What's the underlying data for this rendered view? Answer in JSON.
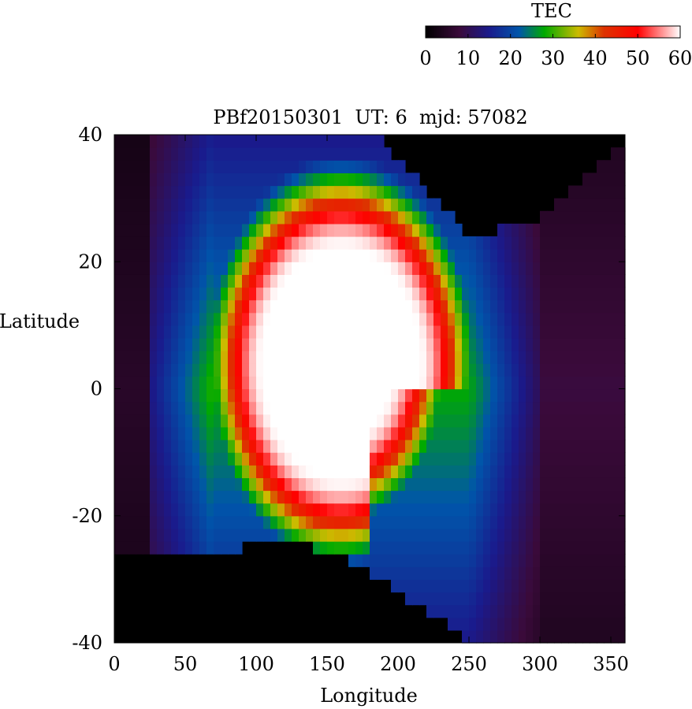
{
  "chart_data": {
    "type": "heatmap",
    "title": "PBf20150301  UT: 6  mjd: 57082",
    "xlabel": "Longitude",
    "ylabel": "Latitude",
    "xlim": [
      0,
      360
    ],
    "ylim": [
      -40,
      40
    ],
    "x_ticks": [
      "0",
      "50",
      "100",
      "150",
      "200",
      "250",
      "300",
      "350"
    ],
    "y_ticks": [
      "40",
      "20",
      "0",
      "-20",
      "-40"
    ],
    "x_tick_values": [
      0,
      50,
      100,
      150,
      200,
      250,
      300,
      350
    ],
    "y_tick_values": [
      40,
      20,
      0,
      -20,
      -40
    ],
    "grid": false,
    "colorbar": {
      "label": "TEC",
      "range": [
        0,
        60
      ],
      "ticks": [
        "0",
        "10",
        "20",
        "30",
        "40",
        "50",
        "60"
      ],
      "tick_values": [
        0,
        10,
        20,
        30,
        40,
        50,
        60
      ],
      "stops": [
        {
          "value": 0,
          "color": "#000000"
        },
        {
          "value": 8,
          "color": "#3a0a3a"
        },
        {
          "value": 15,
          "color": "#1a1a8c"
        },
        {
          "value": 22,
          "color": "#0055aa"
        },
        {
          "value": 28,
          "color": "#00aa00"
        },
        {
          "value": 36,
          "color": "#ccbb00"
        },
        {
          "value": 42,
          "color": "#dd3300"
        },
        {
          "value": 50,
          "color": "#ff0000"
        },
        {
          "value": 60,
          "color": "#ffffff"
        }
      ]
    },
    "grid_resolution": {
      "lon_step": 5,
      "lat_step": 2
    },
    "no_data_color": "#000000",
    "field_description_params": {
      "core_center_lon": 160,
      "core_center_lat": 4,
      "core_half_width_lon": 55,
      "core_half_height_lat": 18,
      "peak_tec": 60,
      "valid_lat_min_west": -26,
      "valid_lat_max_east": 24
    }
  }
}
